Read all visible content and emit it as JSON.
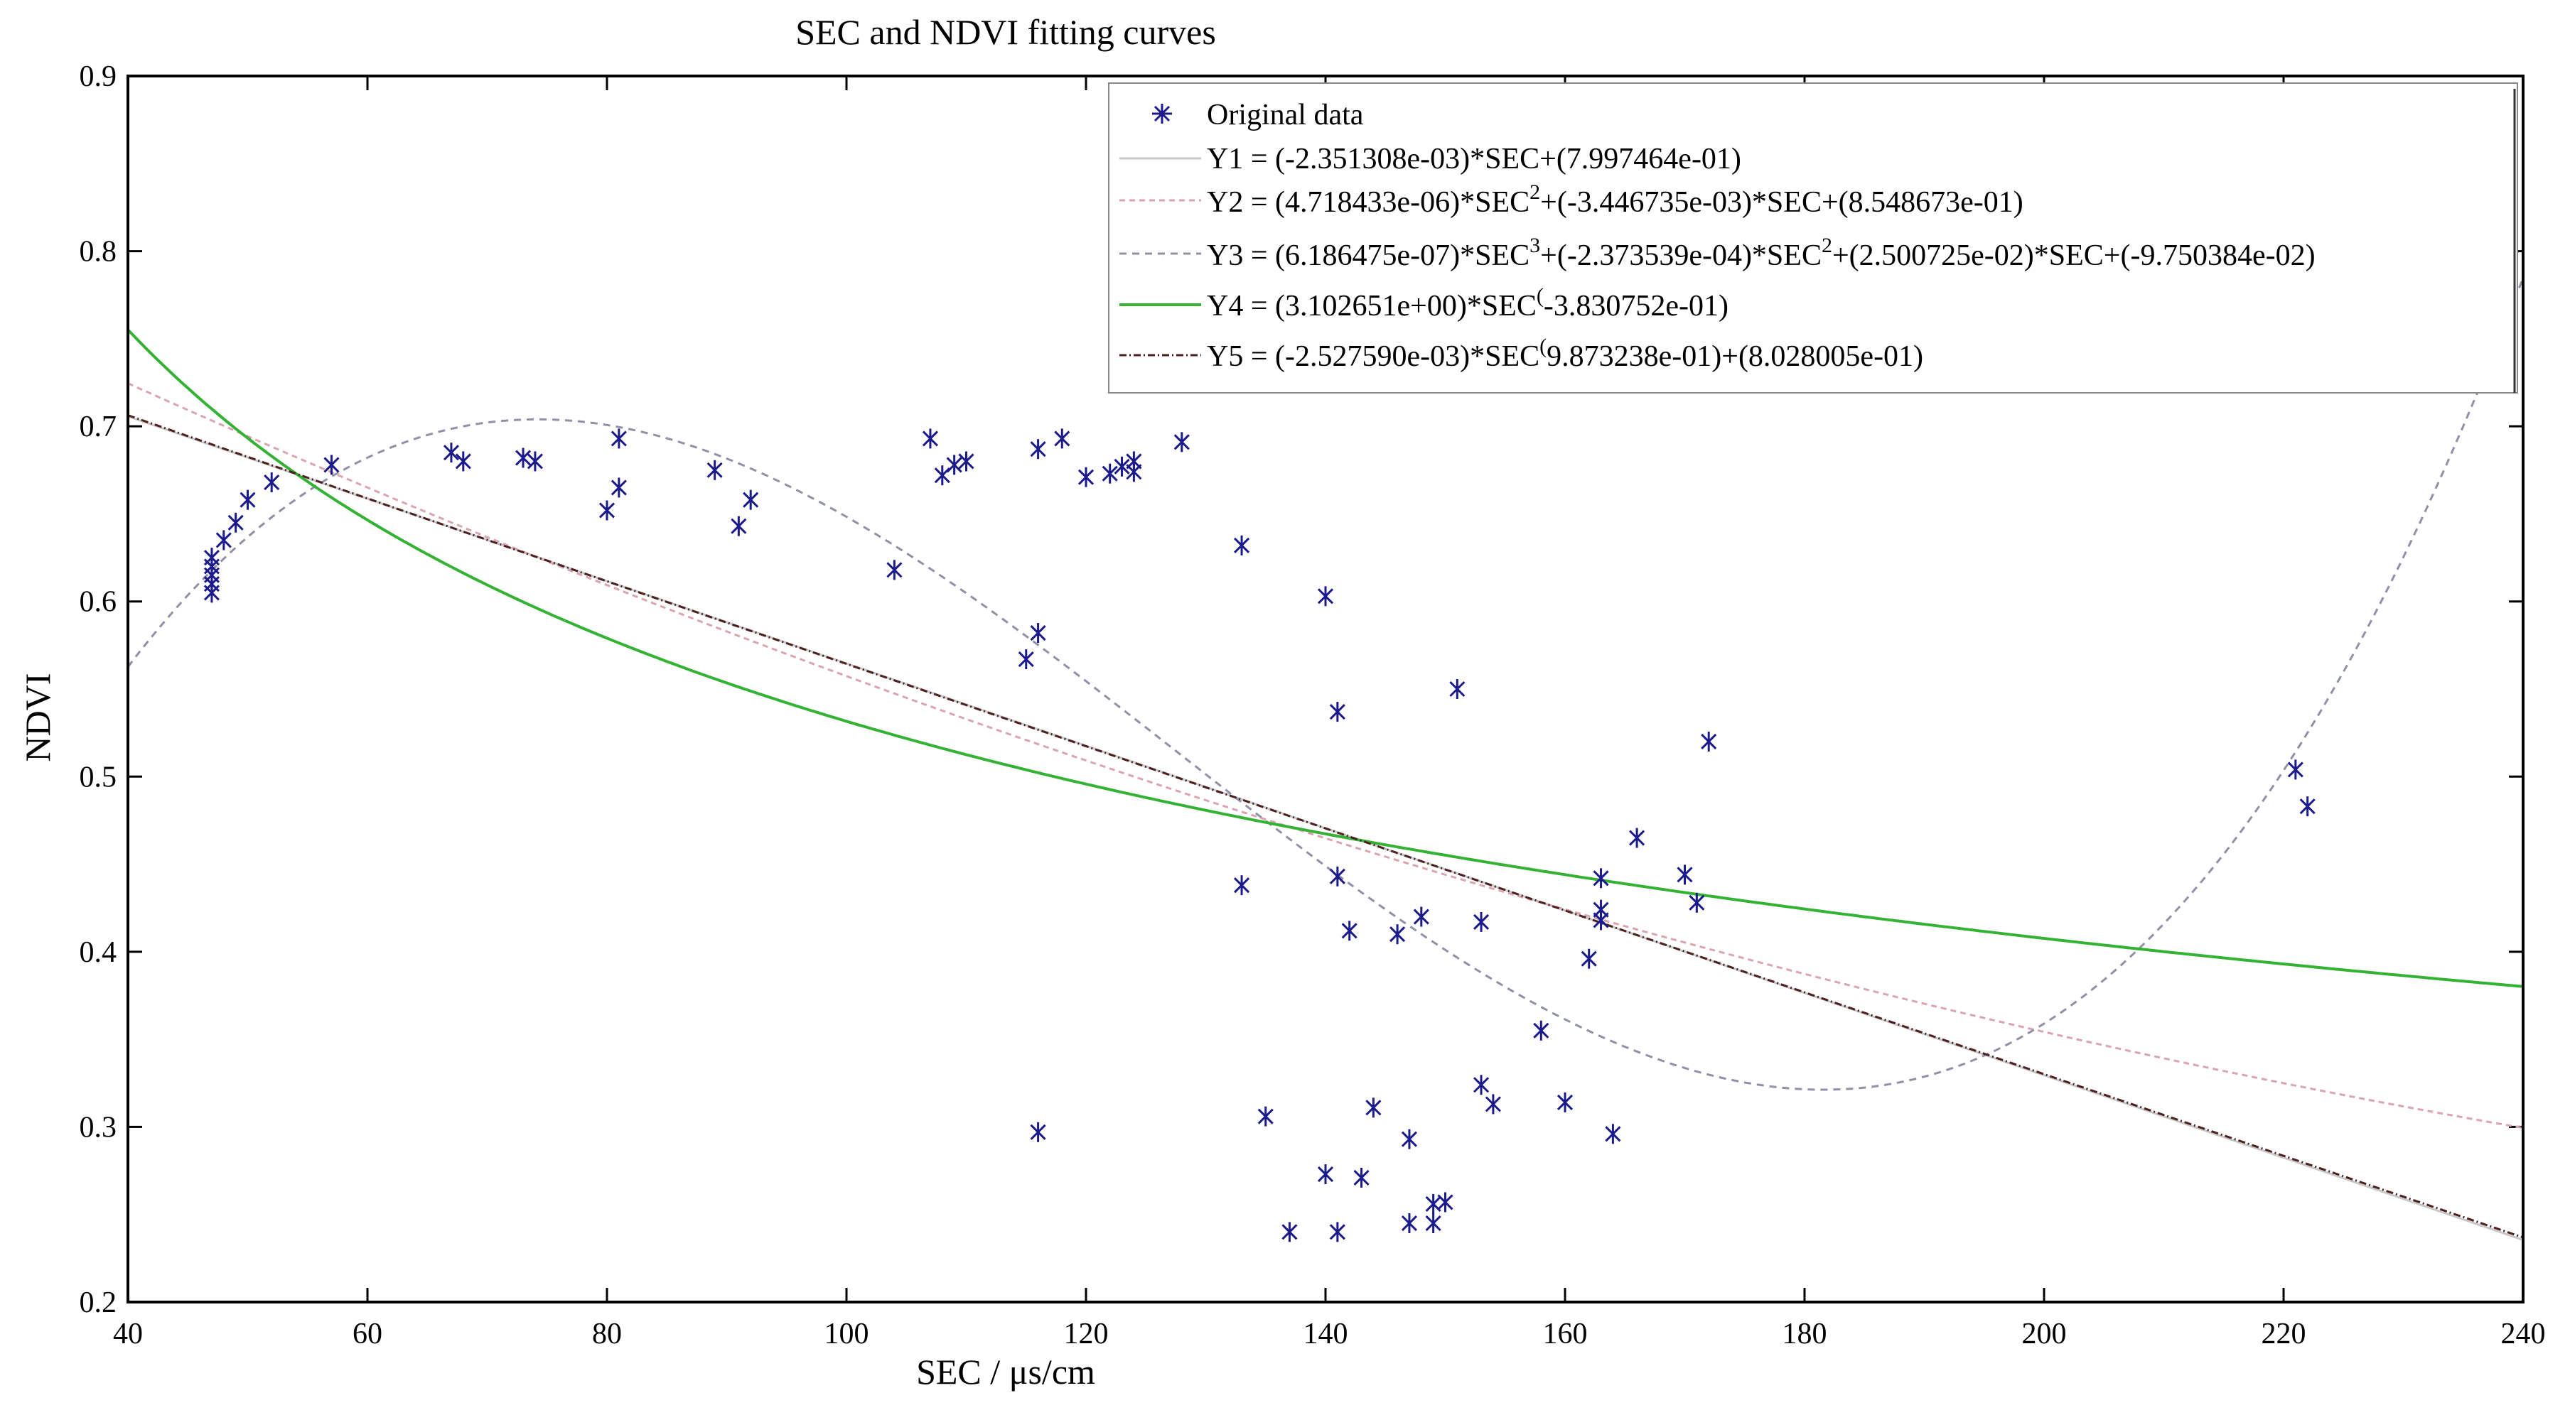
{
  "chart_data": {
    "type": "scatter",
    "title": "SEC and NDVI fitting curves",
    "xlabel": "SEC / μs/cm",
    "ylabel": "NDVI",
    "xlim": [
      40,
      240
    ],
    "ylim": [
      0.2,
      0.9
    ],
    "xticks": [
      40,
      60,
      80,
      100,
      120,
      140,
      160,
      180,
      200,
      220,
      240
    ],
    "yticks": [
      0.2,
      0.3,
      0.4,
      0.5,
      0.6,
      0.7,
      0.8,
      0.9
    ],
    "legend_position": "top-right",
    "colors": {
      "markers": "#1a1a8c",
      "y1": "#c8c8c8",
      "y2": "#d9a5b0",
      "y3": "#9090a8",
      "y4": "#33b233",
      "y5": "#4d1f1f"
    },
    "series": [
      {
        "name": "Original data",
        "kind": "points",
        "x": [
          47,
          47,
          47,
          47,
          47,
          48,
          49,
          50,
          52,
          57,
          67,
          68,
          73,
          74,
          80,
          81,
          81,
          89,
          91,
          92,
          104,
          107,
          108,
          109,
          110,
          115,
          116,
          116,
          116,
          118,
          120,
          122,
          123,
          124,
          124,
          128,
          133,
          133,
          135,
          137,
          140,
          140,
          141,
          141,
          141,
          142,
          143,
          144,
          146,
          147,
          147,
          148,
          149,
          149,
          150,
          151,
          153,
          153,
          154,
          158,
          160,
          162,
          163,
          163,
          163,
          164,
          166,
          170,
          171,
          172,
          221,
          222
        ],
        "y": [
          0.61,
          0.615,
          0.62,
          0.625,
          0.605,
          0.635,
          0.645,
          0.658,
          0.668,
          0.678,
          0.685,
          0.68,
          0.682,
          0.68,
          0.652,
          0.665,
          0.693,
          0.675,
          0.643,
          0.658,
          0.618,
          0.693,
          0.672,
          0.678,
          0.68,
          0.567,
          0.582,
          0.687,
          0.297,
          0.693,
          0.671,
          0.673,
          0.677,
          0.68,
          0.674,
          0.691,
          0.632,
          0.438,
          0.306,
          0.24,
          0.603,
          0.273,
          0.537,
          0.24,
          0.443,
          0.412,
          0.271,
          0.311,
          0.41,
          0.293,
          0.245,
          0.42,
          0.256,
          0.245,
          0.257,
          0.55,
          0.417,
          0.324,
          0.313,
          0.355,
          0.314,
          0.396,
          0.442,
          0.418,
          0.424,
          0.296,
          0.465,
          0.444,
          0.428,
          0.52,
          0.504,
          0.483
        ]
      },
      {
        "name": "Y1 = (-2.351308e-03)*SEC+(7.997464e-01)",
        "kind": "curve",
        "model": "linear",
        "coefficients": [
          -0.002351308,
          0.7997464
        ]
      },
      {
        "name": "Y2 = (4.718433e-06)*SEC2+(-3.446735e-03)*SEC+(8.548673e-01)",
        "kind": "curve",
        "model": "quadratic",
        "coefficients": [
          4.718433e-06,
          -0.003446735,
          0.8548673
        ]
      },
      {
        "name": "Y3 = (6.186475e-07)*SEC3+(-2.373539e-04)*SEC2+(2.500725e-02)*SEC+(-9.750384e-02)",
        "kind": "curve",
        "model": "cubic",
        "coefficients": [
          6.186475e-07,
          -0.0002373539,
          0.02500725,
          -0.09750384
        ]
      },
      {
        "name": "Y4 = (3.102651e+00)*SEC^(-3.830752e-01)",
        "kind": "curve",
        "model": "power",
        "coefficients": [
          3.102651,
          -0.3830752
        ]
      },
      {
        "name": "Y5 = (-2.527590e-03)*SEC^(9.873238e-01)+(8.028005e-01)",
        "kind": "curve",
        "model": "power_offset",
        "coefficients": [
          -0.00252759,
          0.9873238,
          0.8028005
        ]
      }
    ],
    "legend": {
      "original": "Original data",
      "y1": "Y1 = (-2.351308e-03)*SEC+(7.997464e-01)",
      "y2_a": "Y2 = (4.718433e-06)*SEC",
      "y2_sup": "2",
      "y2_b": "+(-3.446735e-03)*SEC+(8.548673e-01)",
      "y3_a": "Y3 = (6.186475e-07)*SEC",
      "y3_sup1": "3",
      "y3_b": "+(-2.373539e-04)*SEC",
      "y3_sup2": "2",
      "y3_c": "+(2.500725e-02)*SEC+(-9.750384e-02)",
      "y4_a": "Y4 = (3.102651e+00)*SEC",
      "y4_sup": "(",
      "y4_b": "-3.830752e-01)",
      "y5_a": "Y5 = (-2.527590e-03)*SEC",
      "y5_sup": "(",
      "y5_b": "9.873238e-01)+(8.028005e-01)"
    }
  }
}
